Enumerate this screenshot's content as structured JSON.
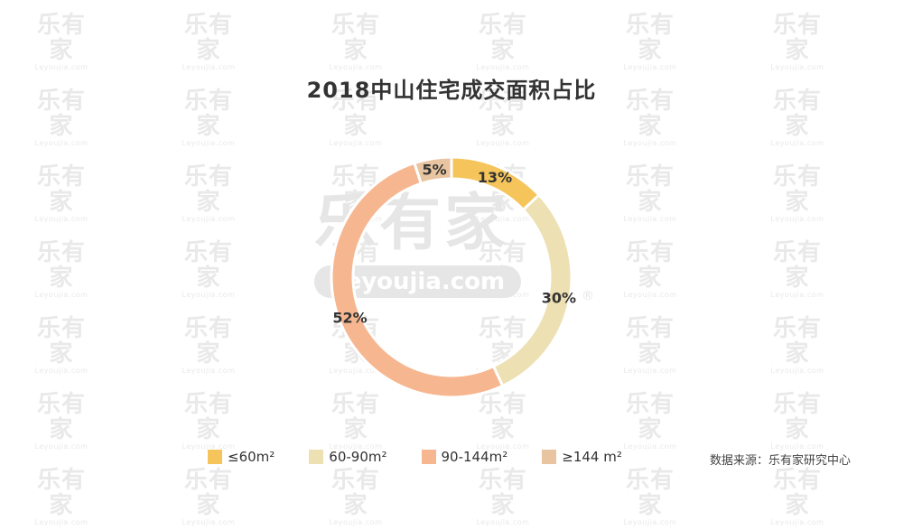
{
  "watermark": {
    "cn": "乐有家",
    "en": "Leyoujia.com"
  },
  "chart_data": {
    "type": "pie",
    "title": "2018中山住宅成交面积占比",
    "categories": [
      "≤60m²",
      "60-90m²",
      "90-144m²",
      "≥144 m²"
    ],
    "values": [
      13,
      30,
      52,
      5
    ],
    "labels": [
      "13%",
      "30%",
      "52%",
      "5%"
    ],
    "colors": [
      "#f5c55c",
      "#ede0b2",
      "#f6b790",
      "#e8c5a0"
    ],
    "legend_position": "bottom",
    "donut": true
  },
  "source": "数据来源：乐有家研究中心"
}
